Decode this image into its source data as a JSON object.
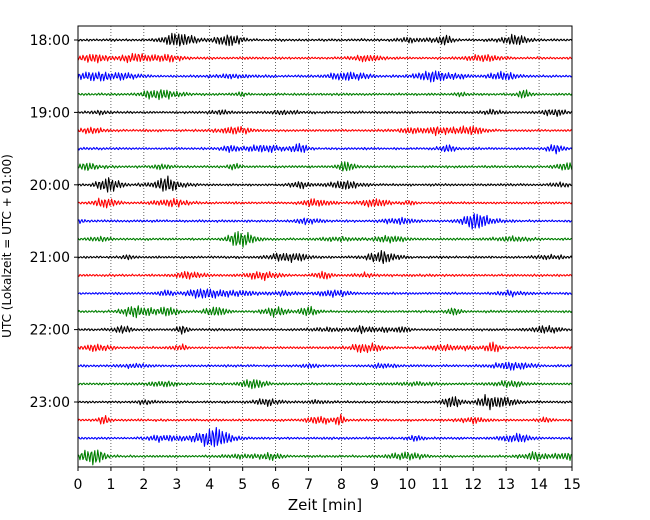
{
  "chart_data": {
    "type": "line",
    "title": "",
    "xlabel": "Zeit  [min]",
    "ylabel": "UTC (Lokalzeit = UTC + 01:00)",
    "xlim": [
      0,
      15
    ],
    "x_ticks": [
      "0",
      "1",
      "2",
      "3",
      "4",
      "5",
      "6",
      "7",
      "8",
      "9",
      "10",
      "11",
      "12",
      "13",
      "14",
      "15"
    ],
    "y_ticks": [
      "18:00",
      "19:00",
      "20:00",
      "21:00",
      "22:00",
      "23:00"
    ],
    "grid": "vertical dotted lines at each minute",
    "trace_interval_min": 15,
    "trace_start": "18:00",
    "trace_count": 24,
    "color_cycle": [
      "#000000",
      "#ff0000",
      "#0000ff",
      "#007f00"
    ]
  }
}
